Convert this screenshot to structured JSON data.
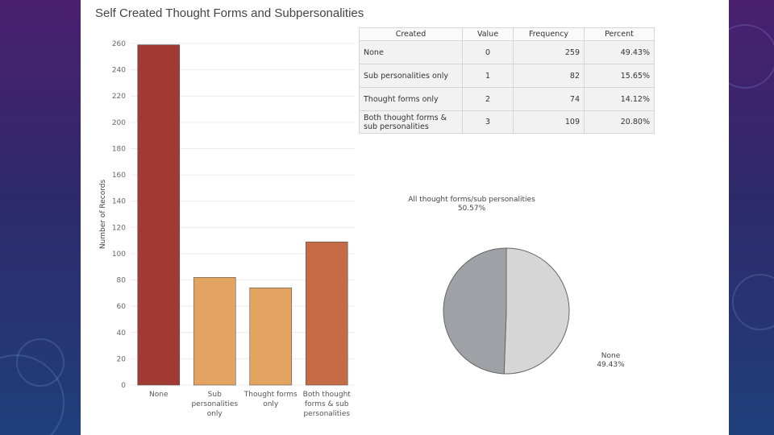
{
  "title": "Self Created Thought Forms and Subpersonalities",
  "colors": {
    "bar_dark_red": "#a03a32",
    "bar_light_orange": "#e3a462",
    "bar_orange": "#c56b45",
    "pie_dark": "#9ea1a6",
    "pie_light": "#d6d6d6"
  },
  "chart_data": [
    {
      "type": "bar",
      "ylabel": "Number of Records",
      "xlabel": "",
      "ylim": [
        0,
        260
      ],
      "yticks": [
        0,
        20,
        40,
        60,
        80,
        100,
        120,
        140,
        160,
        180,
        200,
        220,
        240,
        260
      ],
      "categories": [
        [
          "None"
        ],
        [
          "Sub",
          "personalities",
          "only"
        ],
        [
          "Thought forms",
          "only"
        ],
        [
          "Both thought",
          "forms & sub",
          "personalities"
        ]
      ],
      "values": [
        259,
        82,
        74,
        109
      ],
      "grid": true
    },
    {
      "type": "pie",
      "slices": [
        {
          "name": "All thought forms/sub personalities",
          "value": 50.57,
          "label": "50.57%"
        },
        {
          "name": "None",
          "value": 49.43,
          "label": "49.43%"
        }
      ]
    },
    {
      "type": "table",
      "columns": [
        "Created",
        "Value",
        "Frequency",
        "Percent"
      ],
      "rows": [
        [
          "None",
          "0",
          "259",
          "49.43%"
        ],
        [
          "Sub personalities only",
          "1",
          "82",
          "15.65%"
        ],
        [
          "Thought forms only",
          "2",
          "74",
          "14.12%"
        ],
        [
          "Both thought forms & sub personalities",
          "3",
          "109",
          "20.80%"
        ]
      ]
    }
  ]
}
